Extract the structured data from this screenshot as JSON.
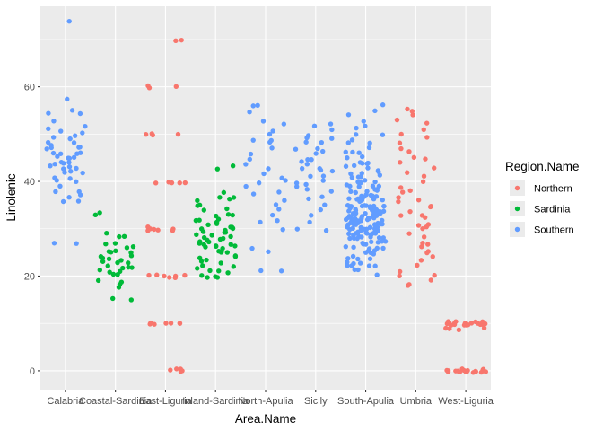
{
  "chart_data": {
    "type": "scatter",
    "xlabel": "Area.Name",
    "ylabel": "Linolenic",
    "categories": [
      "Calabria",
      "Coastal-Sardinia",
      "East-Liguria",
      "Inland-Sardinia",
      "North-Apulia",
      "Sicily",
      "South-Apulia",
      "Umbria",
      "West-Liguria"
    ],
    "ylim": [
      -4,
      77
    ],
    "yticks": [
      0,
      20,
      40,
      60
    ],
    "grid": true,
    "legend": {
      "title": "Region.Name",
      "position": "right",
      "entries": [
        "Northern",
        "Sardinia",
        "Southern"
      ]
    },
    "colors": {
      "Northern": "#F8766D",
      "Sardinia": "#00BA38",
      "Southern": "#619CFF",
      "panel": "#EBEBEB",
      "grid": "#FFFFFF"
    },
    "series": [
      {
        "name": "Southern",
        "category": "Calabria",
        "values": [
          74,
          57,
          55,
          54,
          54,
          53,
          52,
          51,
          51,
          50,
          50,
          49,
          49,
          48,
          48,
          48,
          47,
          47,
          47,
          47,
          46,
          46,
          46,
          46,
          45,
          45,
          45,
          45,
          44,
          44,
          44,
          44,
          43,
          43,
          43,
          43,
          42,
          42,
          42,
          41,
          41,
          40,
          40,
          39,
          38,
          38,
          37,
          37,
          36,
          36,
          27,
          27
        ]
      },
      {
        "name": "Sardinia",
        "category": "Coastal-Sardinia",
        "values": [
          33,
          33,
          29,
          28,
          28,
          27,
          27,
          26,
          26,
          25,
          25,
          25,
          25,
          24,
          24,
          24,
          24,
          23,
          23,
          23,
          23,
          22,
          22,
          22,
          22,
          21,
          21,
          21,
          20,
          20,
          19,
          19,
          18,
          18,
          15,
          15
        ]
      },
      {
        "name": "Northern",
        "category": "East-Liguria",
        "values": [
          70,
          70,
          60,
          60,
          60,
          50,
          50,
          50,
          50,
          40,
          40,
          40,
          40,
          40,
          30,
          30,
          30,
          30,
          30,
          30,
          30,
          20,
          20,
          20,
          20,
          20,
          20,
          20,
          10,
          10,
          10,
          10,
          10,
          10,
          10,
          0,
          0,
          0,
          0,
          0
        ]
      },
      {
        "name": "Sardinia",
        "category": "Inland-Sardinia",
        "values": [
          43,
          43,
          38,
          37,
          37,
          36,
          36,
          35,
          35,
          34,
          34,
          33,
          33,
          33,
          32,
          32,
          32,
          31,
          31,
          31,
          30,
          30,
          30,
          30,
          30,
          29,
          29,
          29,
          29,
          28,
          28,
          28,
          28,
          28,
          27,
          27,
          27,
          27,
          26,
          26,
          26,
          26,
          25,
          25,
          25,
          25,
          24,
          24,
          24,
          23,
          23,
          23,
          22,
          22,
          22,
          21,
          21,
          21,
          20,
          20,
          20,
          20,
          27,
          26,
          30,
          29
        ]
      },
      {
        "name": "Southern",
        "category": "North-Apulia",
        "values": [
          56,
          56,
          55,
          53,
          52,
          51,
          50,
          49,
          49,
          48,
          47,
          46,
          45,
          44,
          43,
          42,
          41,
          40,
          40,
          39,
          38,
          37,
          36,
          35,
          34,
          33,
          32,
          31,
          30,
          26,
          25,
          21,
          21
        ]
      },
      {
        "name": "Southern",
        "category": "Sicily",
        "values": [
          52,
          52,
          51,
          50,
          49,
          49,
          48,
          48,
          47,
          47,
          46,
          46,
          45,
          45,
          44,
          44,
          43,
          43,
          42,
          42,
          41,
          41,
          40,
          40,
          39,
          39,
          38,
          38,
          37,
          36,
          35,
          34,
          33,
          31,
          30,
          30
        ]
      },
      {
        "name": "Southern",
        "category": "South-Apulia",
        "values": [
          56,
          55,
          54,
          53,
          52,
          51,
          50,
          49,
          48,
          47,
          46,
          45,
          44,
          43,
          42,
          41,
          40,
          39,
          38,
          37,
          36,
          35,
          34,
          33,
          32,
          31,
          30,
          29,
          28,
          27,
          26,
          25,
          24,
          23,
          22,
          21,
          20,
          50,
          48,
          46,
          44,
          43,
          42,
          41,
          40,
          39,
          38,
          37,
          36,
          35,
          34,
          33,
          32,
          31,
          30,
          29,
          28,
          27,
          26,
          25,
          24,
          23,
          22,
          40,
          39,
          38,
          37,
          36,
          35,
          34,
          33,
          32,
          31,
          30,
          29,
          28,
          27,
          26,
          25,
          38,
          37,
          36,
          35,
          34,
          33,
          32,
          31,
          30,
          29,
          28,
          27,
          36,
          35,
          34,
          33,
          32,
          31,
          30,
          29,
          28,
          35,
          34,
          33,
          32,
          31,
          30,
          29,
          34,
          33,
          32,
          31,
          30,
          33,
          32,
          31,
          30,
          32,
          31,
          30,
          29,
          45,
          44,
          43,
          42,
          41,
          41,
          40,
          39,
          38,
          37,
          36,
          35,
          34,
          33,
          32,
          31,
          30,
          29,
          28,
          27,
          26,
          25,
          24,
          23,
          22,
          21,
          46,
          44,
          42,
          40,
          38,
          36,
          34,
          32,
          30,
          28,
          26,
          24,
          22,
          37,
          35,
          33,
          31,
          29,
          27,
          39,
          37,
          35,
          33,
          31,
          29,
          27,
          25,
          36,
          34,
          32,
          30,
          28,
          35,
          33,
          31,
          29,
          34,
          32,
          30
        ]
      },
      {
        "name": "Northern",
        "category": "Umbria",
        "values": [
          55,
          55,
          54,
          53,
          52,
          51,
          50,
          49,
          48,
          47,
          46,
          45,
          45,
          44,
          43,
          42,
          41,
          40,
          39,
          38,
          38,
          37,
          36,
          35,
          35,
          34,
          33,
          32,
          31,
          30,
          30,
          29,
          28,
          27,
          26,
          25,
          25,
          24,
          23,
          22,
          21,
          20,
          20,
          19,
          18,
          18,
          36,
          33,
          31,
          27
        ]
      },
      {
        "name": "Northern",
        "category": "West-Liguria",
        "values": [
          10,
          10,
          10,
          10,
          10,
          10,
          10,
          10,
          10,
          10,
          10,
          10,
          10,
          10,
          10,
          10,
          10,
          10,
          9,
          9,
          9,
          9,
          0,
          0,
          0,
          0,
          0,
          0,
          0,
          0,
          0,
          0,
          0,
          0,
          0,
          0,
          0,
          0,
          0,
          0,
          0,
          0
        ]
      }
    ]
  }
}
